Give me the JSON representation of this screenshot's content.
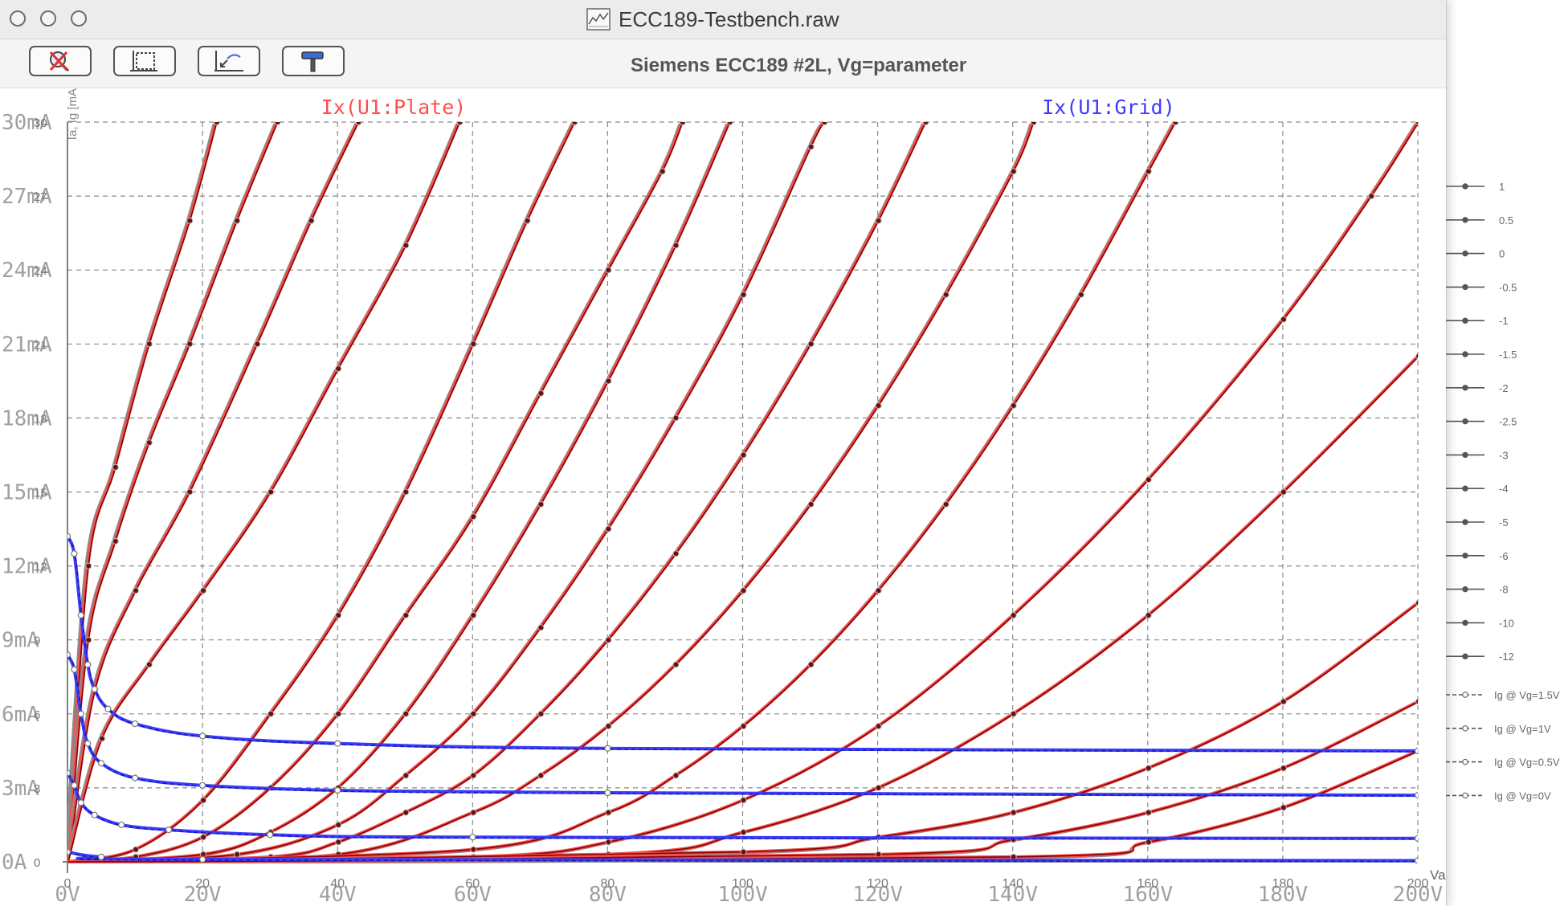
{
  "window": {
    "title": "ECC189-Testbench.raw",
    "icon": "waveform-document-icon",
    "buttons": [
      "autoscale-button",
      "zoom-extents-button",
      "zoom-full-button",
      "settings-hammer-button"
    ]
  },
  "chart_data": {
    "type": "line",
    "title": "Siemens ECC189 #2L, Vg=parameter",
    "xlabel": "Va [V]",
    "ylabel": "Ia, Ig [mA]",
    "xlim": [
      0,
      200
    ],
    "ylim": [
      0,
      30
    ],
    "x_ticks": [
      "0V",
      "20V",
      "40V",
      "60V",
      "80V",
      "100V",
      "120V",
      "140V",
      "160V",
      "180V",
      "200V"
    ],
    "x_ticks_inner": [
      "0",
      "20",
      "40",
      "60",
      "80",
      "100",
      "120",
      "140",
      "160",
      "180",
      "200"
    ],
    "y_ticks": [
      "0A",
      "3mA",
      "6mA",
      "9mA",
      "12mA",
      "15mA",
      "18mA",
      "21mA",
      "24mA",
      "27mA",
      "30mA"
    ],
    "y_ticks_inner": [
      "0",
      "3",
      "6",
      "9",
      "12",
      "15",
      "18",
      "21",
      "24",
      "27",
      "30"
    ],
    "grid": true,
    "trace_labels": [
      {
        "name": "Ix(U1:Plate)",
        "color": "#ff4d4d"
      },
      {
        "name": "Ix(U1:Grid)",
        "color": "#3b3bff"
      }
    ],
    "colors": {
      "model_plate": "#f0524f",
      "measured_plate": "#8a0000",
      "datasheet_plate": "#8c8c8c",
      "grid_current": "#3b3bff",
      "grid_current_dark": "#1a1a99"
    },
    "plate_curves": [
      {
        "vg": 1.5,
        "points": [
          [
            0,
            0
          ],
          [
            3,
            12
          ],
          [
            7,
            16
          ],
          [
            12,
            21
          ],
          [
            18,
            26
          ],
          [
            22,
            30
          ]
        ]
      },
      {
        "vg": 1,
        "points": [
          [
            0,
            0
          ],
          [
            3,
            9
          ],
          [
            7,
            13
          ],
          [
            12,
            17
          ],
          [
            18,
            21
          ],
          [
            25,
            26
          ],
          [
            31,
            30
          ]
        ]
      },
      {
        "vg": 0.5,
        "points": [
          [
            0,
            0
          ],
          [
            4,
            7
          ],
          [
            10,
            11
          ],
          [
            18,
            15
          ],
          [
            28,
            21
          ],
          [
            36,
            26
          ],
          [
            43,
            30
          ]
        ]
      },
      {
        "vg": 0,
        "points": [
          [
            0,
            0
          ],
          [
            5,
            5
          ],
          [
            12,
            8
          ],
          [
            20,
            11
          ],
          [
            30,
            15
          ],
          [
            40,
            20
          ],
          [
            50,
            25
          ],
          [
            58,
            30
          ]
        ]
      },
      {
        "vg": -0.5,
        "points": [
          [
            0,
            0
          ],
          [
            10,
            0.5
          ],
          [
            20,
            2.5
          ],
          [
            30,
            6
          ],
          [
            40,
            10
          ],
          [
            50,
            15
          ],
          [
            60,
            21
          ],
          [
            68,
            26
          ],
          [
            75,
            30
          ]
        ]
      },
      {
        "vg": -1,
        "points": [
          [
            0,
            0
          ],
          [
            10,
            0.2
          ],
          [
            20,
            1
          ],
          [
            30,
            3
          ],
          [
            40,
            6
          ],
          [
            50,
            10
          ],
          [
            60,
            14
          ],
          [
            70,
            19
          ],
          [
            80,
            24
          ],
          [
            88,
            28
          ],
          [
            91,
            30
          ]
        ]
      },
      {
        "vg": -1.5,
        "points": [
          [
            0,
            0
          ],
          [
            20,
            0.3
          ],
          [
            30,
            1.2
          ],
          [
            40,
            3
          ],
          [
            50,
            6
          ],
          [
            60,
            10
          ],
          [
            70,
            14.5
          ],
          [
            80,
            19.5
          ],
          [
            90,
            25
          ],
          [
            98,
            30
          ]
        ]
      },
      {
        "vg": -2,
        "points": [
          [
            0,
            0
          ],
          [
            25,
            0.3
          ],
          [
            40,
            1.5
          ],
          [
            50,
            3.5
          ],
          [
            60,
            6
          ],
          [
            70,
            9.5
          ],
          [
            80,
            13.5
          ],
          [
            90,
            18
          ],
          [
            100,
            23
          ],
          [
            110,
            29
          ],
          [
            112,
            30
          ]
        ]
      },
      {
        "vg": -2.5,
        "points": [
          [
            0,
            0
          ],
          [
            30,
            0.2
          ],
          [
            40,
            0.8
          ],
          [
            50,
            2
          ],
          [
            60,
            3.5
          ],
          [
            70,
            6
          ],
          [
            80,
            9
          ],
          [
            90,
            12.5
          ],
          [
            100,
            16.5
          ],
          [
            110,
            21
          ],
          [
            120,
            26
          ],
          [
            127,
            30
          ]
        ]
      },
      {
        "vg": -3,
        "points": [
          [
            0,
            0
          ],
          [
            40,
            0.3
          ],
          [
            60,
            2
          ],
          [
            70,
            3.5
          ],
          [
            80,
            5.5
          ],
          [
            90,
            8
          ],
          [
            100,
            11
          ],
          [
            110,
            14.5
          ],
          [
            120,
            18.5
          ],
          [
            130,
            23
          ],
          [
            140,
            28
          ],
          [
            143,
            30
          ]
        ]
      },
      {
        "vg": -4,
        "points": [
          [
            0,
            0
          ],
          [
            60,
            0.5
          ],
          [
            80,
            2
          ],
          [
            90,
            3.5
          ],
          [
            100,
            5.5
          ],
          [
            110,
            8
          ],
          [
            120,
            11
          ],
          [
            130,
            14.5
          ],
          [
            140,
            18.5
          ],
          [
            150,
            23
          ],
          [
            160,
            28
          ],
          [
            164,
            30
          ]
        ]
      },
      {
        "vg": -5,
        "points": [
          [
            0,
            0
          ],
          [
            60,
            0.2
          ],
          [
            80,
            0.8
          ],
          [
            100,
            2.5
          ],
          [
            120,
            5.5
          ],
          [
            140,
            10
          ],
          [
            160,
            15.5
          ],
          [
            180,
            22
          ],
          [
            193,
            27
          ],
          [
            200,
            30
          ]
        ]
      },
      {
        "vg": -6,
        "points": [
          [
            0,
            0
          ],
          [
            80,
            0.3
          ],
          [
            100,
            1.2
          ],
          [
            120,
            3
          ],
          [
            140,
            6
          ],
          [
            160,
            10
          ],
          [
            180,
            15
          ],
          [
            200,
            20.5
          ]
        ]
      },
      {
        "vg": -8,
        "points": [
          [
            0,
            0
          ],
          [
            100,
            0.4
          ],
          [
            120,
            1
          ],
          [
            140,
            2
          ],
          [
            160,
            3.8
          ],
          [
            180,
            6.5
          ],
          [
            200,
            10.5
          ]
        ]
      },
      {
        "vg": -10,
        "points": [
          [
            0,
            0
          ],
          [
            120,
            0.3
          ],
          [
            140,
            0.9
          ],
          [
            160,
            2
          ],
          [
            180,
            3.8
          ],
          [
            200,
            6.5
          ]
        ]
      },
      {
        "vg": -12,
        "points": [
          [
            0,
            0
          ],
          [
            140,
            0.2
          ],
          [
            160,
            0.8
          ],
          [
            180,
            2.2
          ],
          [
            200,
            4.5
          ]
        ]
      }
    ],
    "grid_curves": [
      {
        "vg": 1.5,
        "points": [
          [
            0,
            13.2
          ],
          [
            1,
            12.5
          ],
          [
            2,
            10
          ],
          [
            3,
            8
          ],
          [
            4,
            7
          ],
          [
            6,
            6.2
          ],
          [
            10,
            5.6
          ],
          [
            20,
            5.1
          ],
          [
            40,
            4.8
          ],
          [
            80,
            4.6
          ],
          [
            200,
            4.5
          ]
        ]
      },
      {
        "vg": 1,
        "points": [
          [
            0,
            8.4
          ],
          [
            1,
            7.8
          ],
          [
            2,
            6
          ],
          [
            3,
            4.8
          ],
          [
            5,
            4
          ],
          [
            10,
            3.4
          ],
          [
            20,
            3.1
          ],
          [
            40,
            2.9
          ],
          [
            80,
            2.8
          ],
          [
            200,
            2.7
          ]
        ]
      },
      {
        "vg": 0.5,
        "points": [
          [
            0,
            3.6
          ],
          [
            1,
            3.1
          ],
          [
            2,
            2.4
          ],
          [
            4,
            1.9
          ],
          [
            8,
            1.5
          ],
          [
            15,
            1.3
          ],
          [
            30,
            1.1
          ],
          [
            60,
            1
          ],
          [
            200,
            0.95
          ]
        ]
      },
      {
        "vg": 0,
        "points": [
          [
            0,
            0.4
          ],
          [
            5,
            0.2
          ],
          [
            20,
            0.1
          ],
          [
            200,
            0.05
          ]
        ]
      }
    ],
    "legend": [
      {
        "label": "1",
        "kind": "plate"
      },
      {
        "label": "0.5",
        "kind": "plate"
      },
      {
        "label": "0",
        "kind": "plate"
      },
      {
        "label": "-0.5",
        "kind": "plate"
      },
      {
        "label": "-1",
        "kind": "plate"
      },
      {
        "label": "-1.5",
        "kind": "plate"
      },
      {
        "label": "-2",
        "kind": "plate"
      },
      {
        "label": "-2.5",
        "kind": "plate"
      },
      {
        "label": "-3",
        "kind": "plate"
      },
      {
        "label": "-4",
        "kind": "plate"
      },
      {
        "label": "-5",
        "kind": "plate"
      },
      {
        "label": "-6",
        "kind": "plate"
      },
      {
        "label": "-8",
        "kind": "plate"
      },
      {
        "label": "-10",
        "kind": "plate"
      },
      {
        "label": "-12",
        "kind": "plate"
      },
      {
        "label": "Ig @ Vg=1.5V",
        "kind": "grid"
      },
      {
        "label": "Ig @ Vg=1V",
        "kind": "grid"
      },
      {
        "label": "Ig @ Vg=0.5V",
        "kind": "grid"
      },
      {
        "label": "Ig @ Vg=0V",
        "kind": "grid"
      }
    ]
  }
}
